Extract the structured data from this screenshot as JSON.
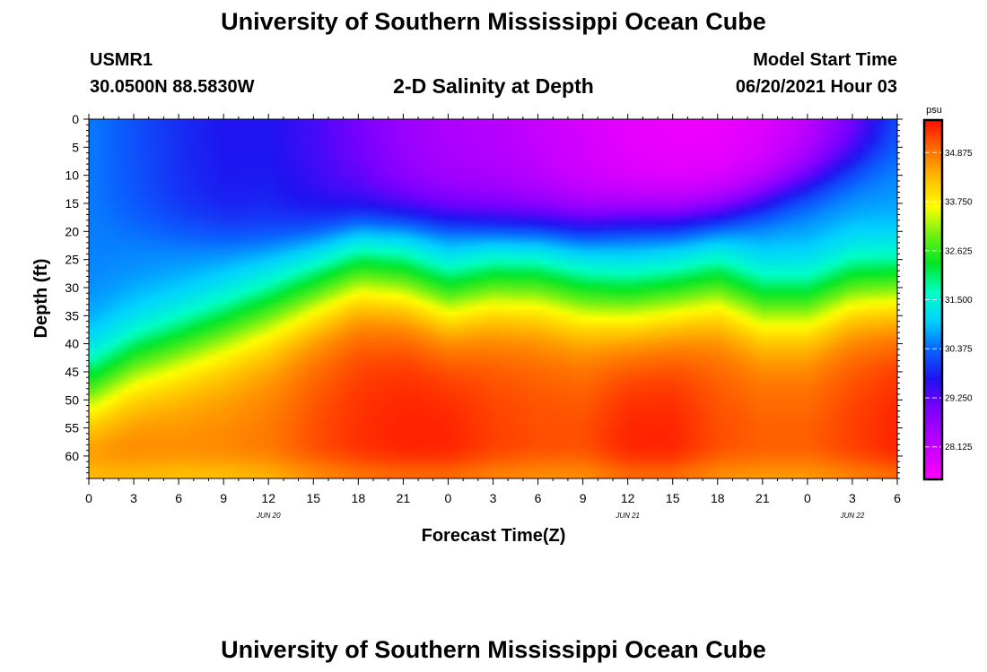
{
  "page": {
    "title_top": "University of Southern Mississippi Ocean Cube",
    "title_bottom": "University of Southern Mississippi Ocean Cube",
    "station_id": "USMR1",
    "station_coords": "30.0500N  88.5830W",
    "model_start_label": "Model Start Time",
    "model_start_value": "06/20/2021 Hour 03",
    "plot_title": "2-D Salinity at Depth"
  },
  "chart_data": {
    "type": "heatmap",
    "title": "2-D Salinity at Depth",
    "xlabel": "Forecast Time(Z)",
    "ylabel": "Depth (ft)",
    "x_hours": [
      0,
      3,
      6,
      9,
      12,
      15,
      18,
      21,
      24,
      27,
      30,
      33,
      36,
      39,
      42,
      45,
      48,
      51,
      54
    ],
    "x_tick_labels": [
      "0",
      "3",
      "6",
      "9",
      "12",
      "15",
      "18",
      "21",
      "0",
      "3",
      "6",
      "9",
      "12",
      "15",
      "18",
      "21",
      "0",
      "3",
      "6"
    ],
    "date_labels": [
      {
        "label": "JUN 20",
        "hour": 12
      },
      {
        "label": "JUN 21",
        "hour": 36
      },
      {
        "label": "JUN 22",
        "hour": 51
      }
    ],
    "depth_ticks": [
      0,
      5,
      10,
      15,
      20,
      25,
      30,
      35,
      40,
      45,
      50,
      55,
      60
    ],
    "depth_range": [
      0,
      64
    ],
    "colorbar": {
      "unit": "psu",
      "range": [
        27.4,
        35.6
      ],
      "tick_labels": [
        "34.875",
        "33.750",
        "32.625",
        "31.500",
        "30.375",
        "29.250",
        "28.125"
      ],
      "tick_values": [
        34.875,
        33.75,
        32.625,
        31.5,
        30.375,
        29.25,
        28.125
      ]
    },
    "surface_salinity_psu": [
      30.5,
      30.2,
      29.9,
      29.7,
      29.7,
      29.4,
      29.0,
      28.6,
      28.4,
      28.3,
      28.1,
      27.9,
      27.7,
      27.6,
      27.6,
      27.8,
      28.2,
      29.0,
      30.1
    ],
    "mixed_layer_bottom_ft": [
      18,
      19,
      20,
      21,
      22,
      21,
      19,
      18,
      18,
      19,
      19,
      19,
      18,
      18,
      17,
      14,
      11,
      8,
      5
    ],
    "halocline_center_ft": [
      48,
      43,
      40,
      37,
      34,
      31,
      28,
      29,
      32,
      30,
      30,
      32,
      33,
      32,
      30,
      33,
      33,
      30,
      30
    ],
    "deep_salinity_psu": [
      35.0,
      34.9,
      34.8,
      34.8,
      34.9,
      35.2,
      35.4,
      35.5,
      35.5,
      35.3,
      35.2,
      35.2,
      35.5,
      35.5,
      35.2,
      35.1,
      35.1,
      35.3,
      35.5
    ]
  }
}
